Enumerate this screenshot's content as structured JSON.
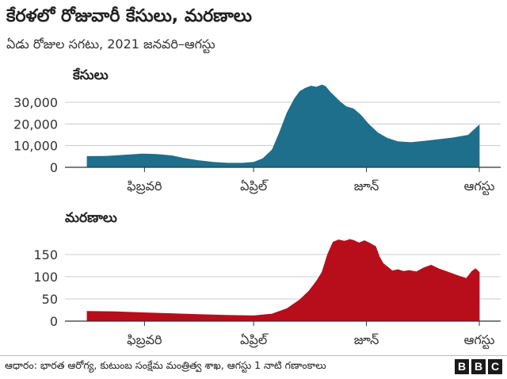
{
  "title": "కేరళలో రోజువారీ కేసులు, మరణాలు",
  "subtitle": "ఏడు రోజుల సగటు, 2021 జనవరి–ఆగస్టు",
  "source": "ఆధారం: భారత ఆరోగ్య, కుటుంబ సంక్షేమ మంత్రిత్వ శాఖ, ఆగస్టు 1 నాటి గణాంకాలు",
  "logo": [
    "B",
    "B",
    "C"
  ],
  "colors": {
    "cases": "#1d6f8c",
    "deaths": "#b80d1b"
  },
  "chart_data": [
    {
      "type": "area",
      "title": "కేసులు",
      "x_tick_labels": [
        "ఫిబ్రవరి",
        "ఏప్రిల్",
        "జూన్",
        "ఆగస్టు"
      ],
      "x_tick_days": [
        31,
        90,
        151,
        212
      ],
      "y_ticks": [
        0,
        10000,
        20000,
        30000
      ],
      "y_tick_labels": [
        "0",
        "10,000",
        "20,000",
        "30,000"
      ],
      "ylim": [
        0,
        40000
      ],
      "grid": true,
      "series": [
        {
          "x_days": [
            0,
            10,
            20,
            30,
            37,
            40,
            46,
            52,
            60,
            68,
            76,
            84,
            90,
            95,
            100,
            104,
            108,
            112,
            115,
            118,
            121,
            124,
            127,
            129,
            131,
            134,
            137,
            140,
            144,
            148,
            152,
            157,
            162,
            168,
            175,
            182,
            190,
            198,
            206,
            212
          ],
          "values": [
            5000,
            5100,
            5600,
            6200,
            6000,
            5800,
            5300,
            4200,
            3100,
            2300,
            1900,
            1900,
            2300,
            4000,
            8000,
            16000,
            25000,
            31500,
            35000,
            36500,
            37500,
            37000,
            38000,
            37200,
            35000,
            32500,
            30000,
            28000,
            27000,
            24000,
            20000,
            16000,
            13500,
            11800,
            11400,
            12000,
            12800,
            13600,
            14800,
            19500
          ]
        }
      ]
    },
    {
      "type": "area",
      "title": "మరణాలు",
      "x_tick_labels": [
        "ఫిబ్రవరి",
        "ఏప్రిల్",
        "జూన్",
        "ఆగస్టు"
      ],
      "x_tick_days": [
        31,
        90,
        151,
        212
      ],
      "y_ticks": [
        0,
        50,
        100,
        150
      ],
      "y_tick_labels": [
        "0",
        "50",
        "100",
        "150"
      ],
      "ylim": [
        0,
        190
      ],
      "grid": true,
      "series": [
        {
          "x_days": [
            0,
            15,
            30,
            45,
            60,
            75,
            90,
            100,
            108,
            115,
            120,
            124,
            127,
            130,
            133,
            136,
            139,
            142,
            144,
            147,
            150,
            153,
            156,
            158,
            160,
            163,
            165,
            168,
            171,
            174,
            178,
            182,
            186,
            190,
            194,
            198,
            202,
            205,
            208,
            210,
            212
          ],
          "values": [
            22,
            21,
            19,
            17,
            15,
            13,
            12,
            16,
            28,
            48,
            68,
            90,
            110,
            150,
            178,
            183,
            180,
            184,
            182,
            176,
            181,
            175,
            168,
            145,
            130,
            120,
            113,
            116,
            112,
            114,
            111,
            120,
            126,
            118,
            112,
            106,
            100,
            96,
            112,
            118,
            110
          ]
        }
      ]
    }
  ]
}
